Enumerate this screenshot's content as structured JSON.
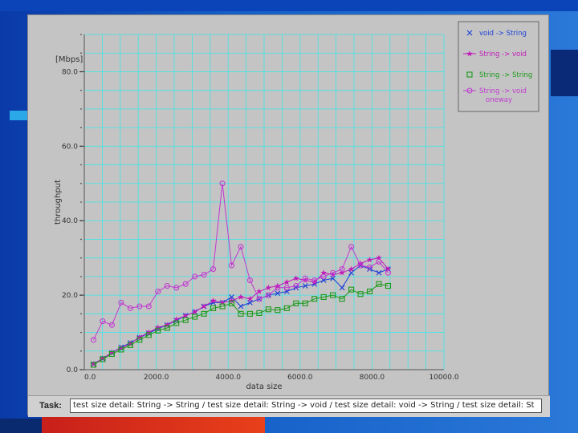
{
  "task": {
    "label": "Task:",
    "text": "test size    detail: String    -> String / test size    detail: String    -> void / test size    detail: void    -> String / test size    detail: St"
  },
  "colors": {
    "panel_bg": "#c4c4c4",
    "grid": "#3fe6e6",
    "series_void_to_string": "#1a3fd8",
    "series_string_to_void": "#c01ab8",
    "series_string_to_string": "#1a9a1a",
    "series_string_to_void_oneway": "#c03ad0"
  },
  "chart_data": {
    "type": "line",
    "xlabel": "data size",
    "ylabel": "throughput",
    "yunit": "[Mbps]",
    "xlim": [
      0,
      10000
    ],
    "ylim": [
      0,
      90
    ],
    "x_ticks": [
      "0.0",
      "2000.0",
      "4000.0",
      "6000.0",
      "8000.0",
      "10000.0"
    ],
    "x_tick_values": [
      0,
      2000,
      4000,
      6000,
      8000,
      10000
    ],
    "y_ticks": [
      "0.0",
      "20.0",
      "40.0",
      "60.0",
      "80.0"
    ],
    "y_tick_values": [
      0,
      20,
      40,
      60,
      80
    ],
    "grid": true,
    "legend_position": "top-right",
    "series": [
      {
        "name": "void -> String",
        "marker": "x",
        "color": "#1a3fd8",
        "points": [
          [
            256,
            1.5
          ],
          [
            512,
            3
          ],
          [
            768,
            4.5
          ],
          [
            1024,
            6
          ],
          [
            1280,
            7.2
          ],
          [
            1536,
            8.6
          ],
          [
            1792,
            9.8
          ],
          [
            2048,
            11
          ],
          [
            2304,
            12
          ],
          [
            2560,
            13.2
          ],
          [
            2816,
            14.5
          ],
          [
            3072,
            15.5
          ],
          [
            3328,
            17
          ],
          [
            3584,
            18
          ],
          [
            3840,
            18
          ],
          [
            4096,
            19.5
          ],
          [
            4352,
            17
          ],
          [
            4608,
            18
          ],
          [
            4864,
            19
          ],
          [
            5120,
            20
          ],
          [
            5376,
            20.5
          ],
          [
            5632,
            21
          ],
          [
            5888,
            22
          ],
          [
            6144,
            22.5
          ],
          [
            6400,
            23
          ],
          [
            6656,
            24
          ],
          [
            6912,
            24.5
          ],
          [
            7168,
            22
          ],
          [
            7424,
            26
          ],
          [
            7680,
            28
          ],
          [
            7936,
            27
          ],
          [
            8192,
            26
          ],
          [
            8448,
            27
          ]
        ]
      },
      {
        "name": "String -> void",
        "marker": "star",
        "color": "#c01ab8",
        "points": [
          [
            256,
            1.5
          ],
          [
            512,
            3
          ],
          [
            768,
            4.6
          ],
          [
            1024,
            5.8
          ],
          [
            1280,
            7
          ],
          [
            1536,
            8.7
          ],
          [
            1792,
            10
          ],
          [
            2048,
            11.3
          ],
          [
            2304,
            12
          ],
          [
            2560,
            13.5
          ],
          [
            2816,
            14.5
          ],
          [
            3072,
            15.5
          ],
          [
            3328,
            17
          ],
          [
            3584,
            18.5
          ],
          [
            3840,
            18
          ],
          [
            4096,
            18.5
          ],
          [
            4352,
            19.5
          ],
          [
            4608,
            19
          ],
          [
            4864,
            21
          ],
          [
            5120,
            22
          ],
          [
            5376,
            22.5
          ],
          [
            5632,
            23.5
          ],
          [
            5888,
            24.5
          ],
          [
            6144,
            24
          ],
          [
            6400,
            23.5
          ],
          [
            6656,
            26
          ],
          [
            6912,
            25.5
          ],
          [
            7168,
            26
          ],
          [
            7424,
            27
          ],
          [
            7680,
            28.5
          ],
          [
            7936,
            29.5
          ],
          [
            8192,
            30
          ],
          [
            8448,
            27
          ]
        ]
      },
      {
        "name": "String -> String",
        "marker": "square",
        "color": "#1a9a1a",
        "points": [
          [
            256,
            1.3
          ],
          [
            512,
            2.8
          ],
          [
            768,
            4.2
          ],
          [
            1024,
            5.4
          ],
          [
            1280,
            6.6
          ],
          [
            1536,
            8
          ],
          [
            1792,
            9.3
          ],
          [
            2048,
            10.5
          ],
          [
            2304,
            11.2
          ],
          [
            2560,
            12.5
          ],
          [
            2816,
            13.3
          ],
          [
            3072,
            14.2
          ],
          [
            3328,
            15
          ],
          [
            3584,
            16.5
          ],
          [
            3840,
            17
          ],
          [
            4096,
            17.8
          ],
          [
            4352,
            15
          ],
          [
            4608,
            15
          ],
          [
            4864,
            15.2
          ],
          [
            5120,
            16.2
          ],
          [
            5376,
            16
          ],
          [
            5632,
            16.5
          ],
          [
            5888,
            17.8
          ],
          [
            6144,
            17.8
          ],
          [
            6400,
            19
          ],
          [
            6656,
            19.5
          ],
          [
            6912,
            20
          ],
          [
            7168,
            19
          ],
          [
            7424,
            21.5
          ],
          [
            7680,
            20.3
          ],
          [
            7936,
            21
          ],
          [
            8192,
            23
          ],
          [
            8448,
            22.5
          ]
        ]
      },
      {
        "name": "String -> void oneway",
        "marker": "circle",
        "color": "#c03ad0",
        "points": [
          [
            256,
            8
          ],
          [
            512,
            13
          ],
          [
            768,
            12
          ],
          [
            1024,
            18
          ],
          [
            1280,
            16.5
          ],
          [
            1536,
            17
          ],
          [
            1792,
            17
          ],
          [
            2048,
            21
          ],
          [
            2304,
            22.5
          ],
          [
            2560,
            22
          ],
          [
            2816,
            23
          ],
          [
            3072,
            25
          ],
          [
            3328,
            25.5
          ],
          [
            3584,
            27
          ],
          [
            3840,
            50
          ],
          [
            4096,
            28
          ],
          [
            4352,
            33
          ],
          [
            4608,
            24
          ],
          [
            4864,
            19
          ],
          [
            5120,
            20
          ],
          [
            5376,
            22
          ],
          [
            5632,
            22
          ],
          [
            5888,
            22.5
          ],
          [
            6144,
            24.5
          ],
          [
            6400,
            24
          ],
          [
            6656,
            25
          ],
          [
            6912,
            26
          ],
          [
            7168,
            27
          ],
          [
            7424,
            33
          ],
          [
            7680,
            28
          ],
          [
            7936,
            27.5
          ],
          [
            8192,
            29
          ],
          [
            8448,
            26
          ]
        ]
      }
    ]
  }
}
